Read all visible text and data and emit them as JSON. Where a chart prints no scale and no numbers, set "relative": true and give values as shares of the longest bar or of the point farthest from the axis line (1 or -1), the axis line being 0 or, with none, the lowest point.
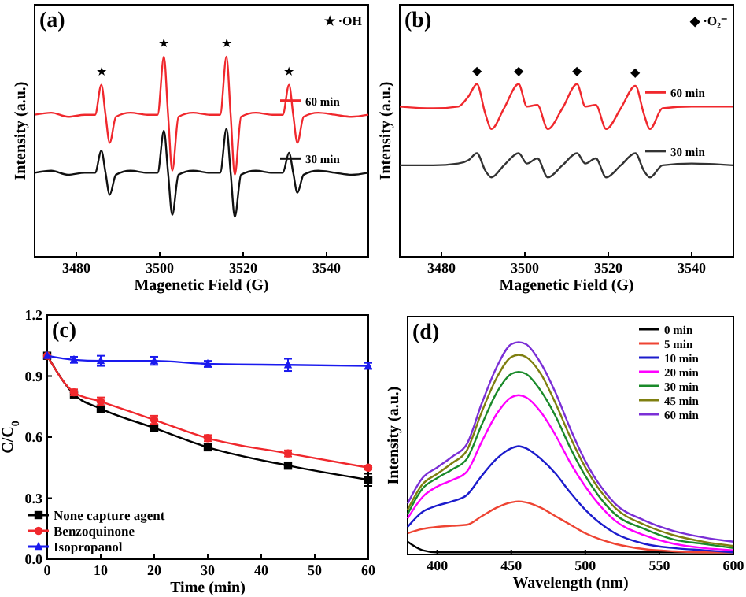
{
  "chart_data": [
    {
      "type": "line",
      "title": "(a)",
      "xlabel": "Magenetic Field (G)",
      "ylabel": "Intensity (a.u.)",
      "relative": true,
      "xlim": [
        3470,
        3550
      ],
      "xticks": [
        3480,
        3500,
        3520,
        3540
      ],
      "legend": "right",
      "marker": "none",
      "annotations": [
        "★ ·OH",
        {
          "text": "★",
          "x": 3486,
          "y": 0.86
        },
        {
          "text": "★",
          "x": 3501,
          "y": 1.0
        },
        {
          "text": "★",
          "x": 3516,
          "y": 1.0
        },
        {
          "text": "★",
          "x": 3531,
          "y": 0.86
        }
      ],
      "x": [
        3470,
        3474,
        3478,
        3482,
        3484.5,
        3486,
        3487,
        3488,
        3489.5,
        3493,
        3497,
        3499.5,
        3501,
        3502,
        3503,
        3504.5,
        3508,
        3512,
        3514.5,
        3516,
        3517,
        3518,
        3519.5,
        3523,
        3527,
        3529.5,
        3531,
        3532,
        3533,
        3534.5,
        3538,
        3542,
        3546,
        3550
      ],
      "series": [
        {
          "name": "60 min",
          "color": "#f0282d",
          "values": [
            0.71,
            0.72,
            0.7,
            0.71,
            0.71,
            0.86,
            0.71,
            0.57,
            0.7,
            0.72,
            0.71,
            0.71,
            1.0,
            0.71,
            0.43,
            0.7,
            0.72,
            0.71,
            0.71,
            1.0,
            0.71,
            0.41,
            0.7,
            0.72,
            0.71,
            0.71,
            0.86,
            0.71,
            0.57,
            0.7,
            0.72,
            0.71,
            0.7,
            0.71
          ]
        },
        {
          "name": "30 min",
          "color": "#111111",
          "values": [
            0.42,
            0.43,
            0.41,
            0.42,
            0.42,
            0.53,
            0.42,
            0.31,
            0.41,
            0.43,
            0.42,
            0.42,
            0.63,
            0.42,
            0.21,
            0.41,
            0.43,
            0.42,
            0.42,
            0.64,
            0.42,
            0.2,
            0.41,
            0.43,
            0.42,
            0.42,
            0.52,
            0.42,
            0.32,
            0.41,
            0.43,
            0.42,
            0.41,
            0.42
          ]
        }
      ]
    },
    {
      "type": "line",
      "title": "(b)",
      "xlabel": "Magenetic Field (G)",
      "ylabel": "Intensity (a.u.)",
      "relative": true,
      "xlim": [
        3470,
        3550
      ],
      "xticks": [
        3480,
        3500,
        3520,
        3540
      ],
      "legend": "right",
      "marker": "none",
      "annotations": [
        "◆ ·O₂⁻",
        {
          "text": "◆",
          "x": 3488.5,
          "y": 1.0
        },
        {
          "text": "◆",
          "x": 3498.5,
          "y": 1.0
        },
        {
          "text": "◆",
          "x": 3512.5,
          "y": 1.0
        },
        {
          "text": "◆",
          "x": 3526.5,
          "y": 0.99
        }
      ],
      "x": [
        3470,
        3478,
        3484,
        3486.5,
        3488.5,
        3490.5,
        3492,
        3495,
        3498.5,
        3500.5,
        3503,
        3505.5,
        3509,
        3512.5,
        3514.5,
        3517,
        3519.5,
        3523,
        3526.5,
        3528.5,
        3530,
        3533,
        3540,
        3550
      ],
      "series": [
        {
          "name": "60 min",
          "color": "#f0282d",
          "values": [
            0.87,
            0.86,
            0.87,
            0.93,
            1.0,
            0.83,
            0.74,
            0.86,
            1.0,
            0.87,
            0.88,
            0.74,
            0.86,
            1.0,
            0.87,
            0.88,
            0.74,
            0.86,
            0.99,
            0.83,
            0.74,
            0.86,
            0.87,
            0.87
          ]
        },
        {
          "name": "30 min",
          "color": "#333333",
          "values": [
            0.53,
            0.53,
            0.54,
            0.56,
            0.6,
            0.5,
            0.46,
            0.53,
            0.6,
            0.54,
            0.57,
            0.46,
            0.53,
            0.6,
            0.54,
            0.57,
            0.46,
            0.53,
            0.6,
            0.5,
            0.46,
            0.53,
            0.54,
            0.53
          ]
        }
      ]
    },
    {
      "type": "line",
      "title": "(c)",
      "xlabel": "Time (min)",
      "ylabel": "C/C$_{0}$",
      "xlim": [
        0,
        60
      ],
      "xticks": [
        0,
        10,
        20,
        30,
        40,
        50,
        60
      ],
      "ylim": [
        0,
        1.2
      ],
      "yticks": [
        {
          "value": 0,
          "label": "0.0"
        },
        0.3,
        0.6,
        0.9,
        1.2
      ],
      "legend": "bottom left",
      "x": [
        0,
        5,
        10,
        20,
        30,
        45,
        60
      ],
      "series": [
        {
          "name": "None capture agent",
          "color": "#000000",
          "marker": "square",
          "values": [
            1.0,
            0.81,
            0.74,
            0.645,
            0.55,
            0.46,
            0.39
          ],
          "errors": [
            null,
            0.01,
            0.015,
            0.015,
            0.015,
            0.015,
            0.03
          ]
        },
        {
          "name": "Benzoquinone",
          "color": "#f0282d",
          "marker": "circle",
          "values": [
            1.0,
            0.82,
            0.775,
            0.685,
            0.595,
            0.52,
            0.45
          ],
          "errors": [
            null,
            0.015,
            0.02,
            0.02,
            0.015,
            0.015,
            0.01
          ]
        },
        {
          "name": "Isopropanol",
          "color": "#1a1aee",
          "marker": "triangle",
          "values": [
            1.0,
            0.98,
            0.975,
            0.975,
            0.96,
            0.955,
            0.95
          ],
          "errors": [
            null,
            0.015,
            0.025,
            0.02,
            0.015,
            0.03,
            0.015
          ]
        }
      ]
    },
    {
      "type": "line",
      "title": "(d)",
      "xlabel": "Wavelength (nm)",
      "ylabel": "Intensity (a.u.)",
      "relative": true,
      "xlim": [
        380,
        600
      ],
      "xticks": [
        400,
        450,
        500,
        550,
        600
      ],
      "legend": "top right",
      "marker": "none",
      "x": [
        380,
        390,
        400,
        410,
        420,
        430,
        440,
        450,
        455,
        460,
        470,
        480,
        490,
        500,
        520,
        540,
        560,
        580,
        600
      ],
      "series": [
        {
          "name": "0 min",
          "color": "#000000",
          "values": [
            0.06,
            0.02,
            0.01,
            0.01,
            0.01,
            0.01,
            0.01,
            0.01,
            0.01,
            0.01,
            0.01,
            0.01,
            0.01,
            0.01,
            0.01,
            0.01,
            0.01,
            0.01,
            0.01
          ]
        },
        {
          "name": "5 min",
          "color": "#ee4433",
          "values": [
            0.1,
            0.12,
            0.13,
            0.135,
            0.14,
            0.18,
            0.22,
            0.245,
            0.25,
            0.245,
            0.22,
            0.18,
            0.14,
            0.1,
            0.05,
            0.025,
            0.015,
            0.01,
            0.01
          ]
        },
        {
          "name": "10 min",
          "color": "#1c1ccc",
          "values": [
            0.13,
            0.2,
            0.23,
            0.25,
            0.28,
            0.37,
            0.45,
            0.5,
            0.51,
            0.5,
            0.45,
            0.38,
            0.29,
            0.21,
            0.1,
            0.05,
            0.03,
            0.02,
            0.01
          ]
        },
        {
          "name": "20 min",
          "color": "#ff00ff",
          "values": [
            0.17,
            0.27,
            0.32,
            0.35,
            0.39,
            0.53,
            0.66,
            0.74,
            0.75,
            0.74,
            0.67,
            0.56,
            0.43,
            0.32,
            0.16,
            0.09,
            0.05,
            0.03,
            0.02
          ]
        },
        {
          "name": "30 min",
          "color": "#1a8a2a",
          "values": [
            0.19,
            0.31,
            0.36,
            0.4,
            0.45,
            0.61,
            0.76,
            0.85,
            0.86,
            0.85,
            0.77,
            0.65,
            0.5,
            0.37,
            0.19,
            0.12,
            0.07,
            0.05,
            0.03
          ]
        },
        {
          "name": "45 min",
          "color": "#7f7f10",
          "values": [
            0.21,
            0.33,
            0.38,
            0.43,
            0.49,
            0.67,
            0.83,
            0.93,
            0.94,
            0.93,
            0.85,
            0.71,
            0.55,
            0.41,
            0.22,
            0.14,
            0.09,
            0.06,
            0.04
          ]
        },
        {
          "name": "60 min",
          "color": "#7b2fd6",
          "values": [
            0.24,
            0.36,
            0.41,
            0.46,
            0.52,
            0.71,
            0.88,
            0.99,
            1.0,
            0.99,
            0.9,
            0.76,
            0.59,
            0.44,
            0.24,
            0.16,
            0.11,
            0.08,
            0.06
          ]
        }
      ]
    }
  ]
}
